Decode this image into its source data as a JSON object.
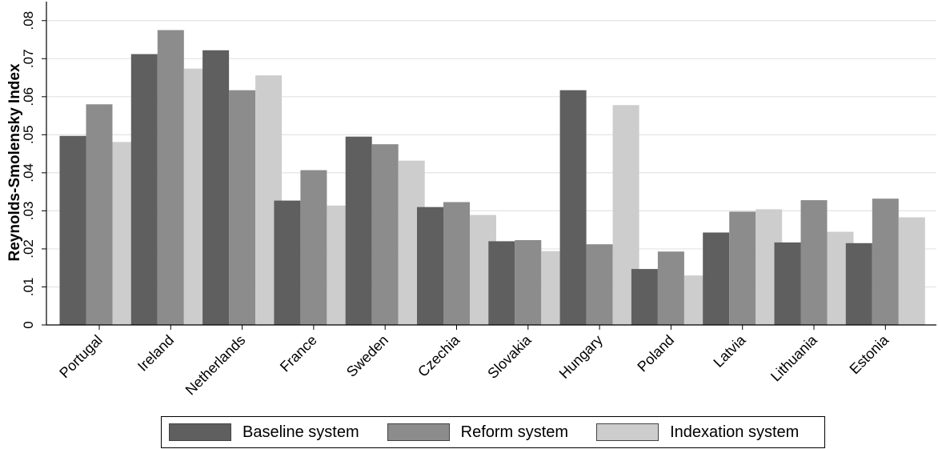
{
  "chart_data": {
    "type": "bar",
    "ylabel": "Reynolds-Smolensky Index",
    "ylim": [
      0,
      0.085
    ],
    "yticks": [
      0,
      0.01,
      0.02,
      0.03,
      0.04,
      0.05,
      0.06,
      0.07,
      0.08
    ],
    "ytick_labels": [
      "0",
      ".01",
      ".02",
      ".03",
      ".04",
      ".05",
      ".06",
      ".07",
      ".08"
    ],
    "grid": true,
    "legend_position": "bottom",
    "categories": [
      "Portugal",
      "Ireland",
      "Netherlands",
      "France",
      "Sweden",
      "Czechia",
      "Slovakia",
      "Hungary",
      "Poland",
      "Latvia",
      "Lithuania",
      "Estonia"
    ],
    "series": [
      {
        "name": "Baseline system",
        "color": "#5f5f5f",
        "values": [
          0.0497,
          0.0712,
          0.0722,
          0.0327,
          0.0495,
          0.031,
          0.022,
          0.0617,
          0.0147,
          0.0243,
          0.0217,
          0.0215
        ]
      },
      {
        "name": "Reform system",
        "color": "#8c8c8c",
        "values": [
          0.058,
          0.0775,
          0.0617,
          0.0407,
          0.0475,
          0.0323,
          0.0223,
          0.0212,
          0.0193,
          0.0298,
          0.0328,
          0.0332
        ]
      },
      {
        "name": "Indexation system",
        "color": "#cdcdcd",
        "values": [
          0.0481,
          0.0674,
          0.0656,
          0.0314,
          0.0432,
          0.0289,
          0.0194,
          0.0578,
          0.013,
          0.0304,
          0.0245,
          0.0283
        ]
      }
    ]
  }
}
